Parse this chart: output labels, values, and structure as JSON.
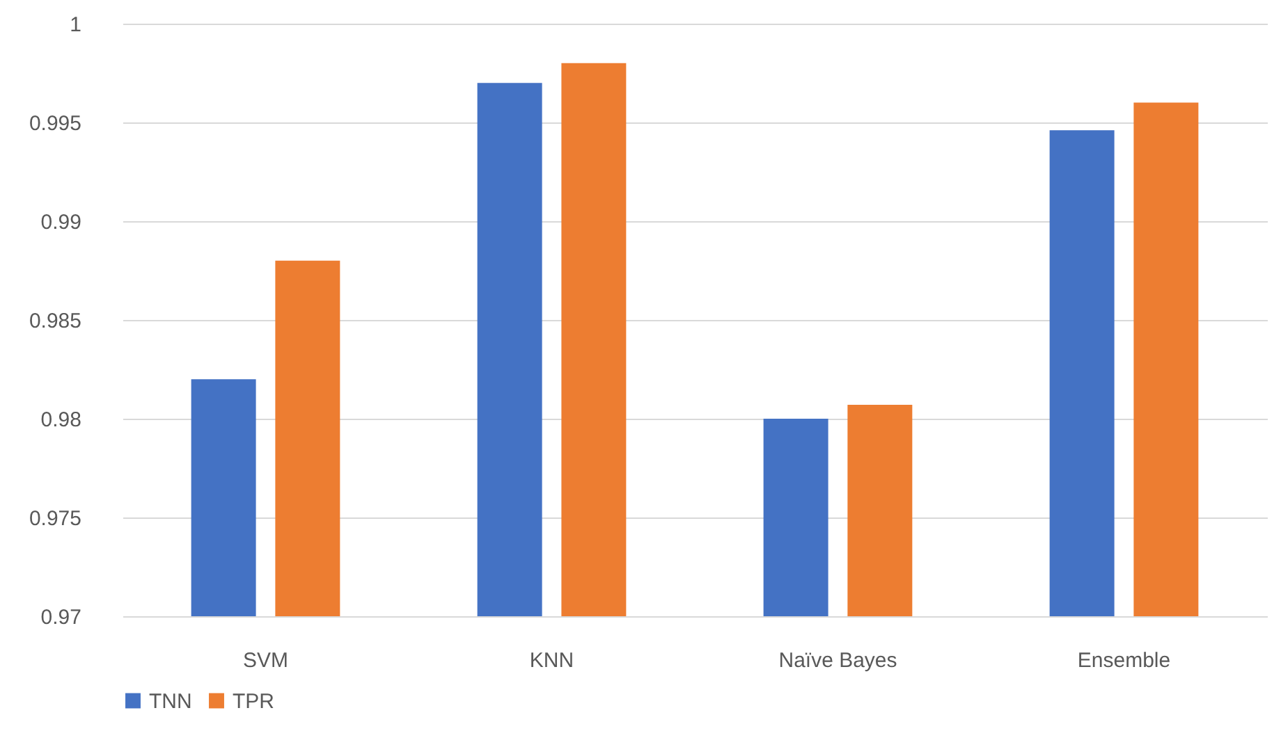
{
  "chart_data": {
    "type": "bar",
    "categories": [
      "SVM",
      "KNN",
      "Naïve Bayes",
      "Ensemble"
    ],
    "series": [
      {
        "name": "TNN",
        "color": "#4472c4",
        "values": [
          0.982,
          0.997,
          0.98,
          0.9946
        ]
      },
      {
        "name": "TPR",
        "color": "#ed7d31",
        "values": [
          0.988,
          0.998,
          0.9807,
          0.996
        ]
      }
    ],
    "ylim": [
      0.97,
      1
    ],
    "yticks": [
      0.97,
      0.975,
      0.98,
      0.985,
      0.99,
      0.995,
      1
    ],
    "grid": "y",
    "legend": "bottom"
  }
}
